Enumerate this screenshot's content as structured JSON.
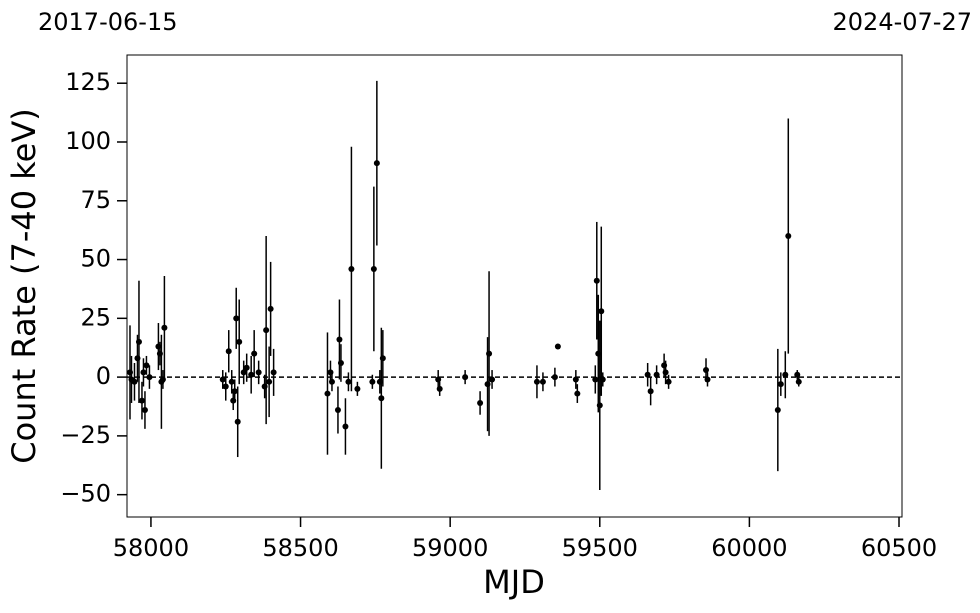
{
  "chart_data": {
    "type": "errorbar",
    "annotations": [
      "2017-06-15",
      "2024-07-27"
    ],
    "xlabel": "MJD",
    "ylabel": "Count Rate (7-40 keV)",
    "color": "#000000",
    "zero_line": true,
    "xlim": [
      57920,
      60510
    ],
    "ylim": [
      -59.5,
      137
    ],
    "xticks": [
      58000,
      58500,
      59000,
      59500,
      60000,
      60500
    ],
    "yticks": [
      -50,
      -25,
      0,
      25,
      50,
      75,
      100,
      125
    ],
    "x": [
      57930,
      57935,
      57945,
      57955,
      57960,
      57970,
      57975,
      57980,
      57985,
      57995,
      58025,
      58030,
      58035,
      58045,
      58040,
      58240,
      58250,
      58260,
      58270,
      58275,
      58280,
      58285,
      58290,
      58295,
      58310,
      58320,
      58335,
      58345,
      58360,
      58380,
      58385,
      58395,
      58400,
      58410,
      58590,
      58600,
      58605,
      58625,
      58630,
      58635,
      58650,
      58660,
      58670,
      58690,
      58740,
      58745,
      58755,
      58765,
      58770,
      58775,
      58960,
      58965,
      59050,
      59100,
      59125,
      59130,
      59140,
      59290,
      59310,
      59350,
      59360,
      59420,
      59425,
      59485,
      59490,
      59495,
      59500,
      59505,
      59510,
      59660,
      59670,
      59690,
      59715,
      59720,
      59730,
      59855,
      59860,
      60095,
      60105,
      60120,
      60130,
      60160,
      60165
    ],
    "values": [
      2,
      -1,
      -2,
      8,
      15,
      -10,
      2,
      -14,
      5,
      0,
      13,
      10,
      -2,
      21,
      -1,
      -1,
      -4,
      11,
      -2,
      -10,
      -6,
      25,
      -19,
      15,
      2,
      4,
      1,
      10,
      2,
      -4,
      20,
      -2,
      29,
      2,
      -7,
      2,
      -2,
      -14,
      16,
      6,
      -21,
      -2,
      46,
      -5,
      -2,
      46,
      91,
      -2,
      -9,
      8,
      -1,
      -5,
      0,
      -11,
      -3,
      10,
      -1,
      -2,
      -2,
      0,
      13,
      -1,
      -7,
      -1,
      41,
      10,
      -12,
      28,
      -1,
      1,
      -6,
      1,
      5,
      2,
      -2,
      3,
      -1,
      -14,
      -3,
      1,
      60,
      1,
      -2
    ],
    "errors": [
      20,
      10,
      8,
      10,
      26,
      8,
      6,
      8,
      4,
      5,
      10,
      5,
      20,
      22,
      4,
      4,
      6,
      9,
      5,
      4,
      5,
      13,
      15,
      18,
      5,
      6,
      8,
      10,
      5,
      5,
      40,
      15,
      20,
      10,
      26,
      5,
      4,
      10,
      17,
      8,
      12,
      4,
      52,
      3,
      3,
      35,
      35,
      5,
      30,
      12,
      4,
      3,
      3,
      5,
      20,
      35,
      4,
      7,
      4,
      4,
      1,
      4,
      4,
      6,
      25,
      25,
      36,
      36,
      3,
      5,
      6,
      4,
      5,
      5,
      3,
      5,
      3,
      26,
      5,
      10,
      50,
      2,
      2
    ]
  }
}
